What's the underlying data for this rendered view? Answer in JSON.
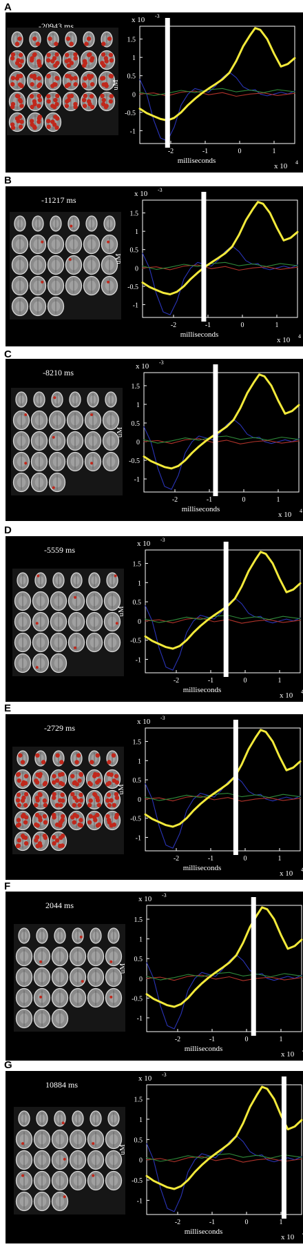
{
  "figure": {
    "axis": {
      "xlabel": "milliseconds",
      "ylabel": "uM",
      "y_exponent": "x 10",
      "y_exponent_power": "-3",
      "x_exponent": "x 10",
      "x_exponent_power": "4",
      "xticks": [
        "-2",
        "-1",
        "0",
        "1"
      ],
      "yticks": [
        "-1",
        "-0.5",
        "0",
        "0.5",
        "1",
        "1.5"
      ]
    },
    "colors": {
      "background": "#000000",
      "frame": "#ffffff",
      "main_trace": "#f2e93a",
      "blue_trace": "#2a34b8",
      "red_trace": "#b0332a",
      "green_trace": "#2f8a3a",
      "activation": "#c0281c",
      "cursor": "#ffffff"
    },
    "panels": [
      {
        "letter": "A",
        "time_label": "-20943 ms",
        "cursor_ms": -20943,
        "activation": "high"
      },
      {
        "letter": "B",
        "time_label": "-11217 ms",
        "cursor_ms": -11217,
        "activation": "low"
      },
      {
        "letter": "C",
        "time_label": "-8210 ms",
        "cursor_ms": -8210,
        "activation": "low"
      },
      {
        "letter": "D",
        "time_label": "-5559 ms",
        "cursor_ms": -5559,
        "activation": "low"
      },
      {
        "letter": "E",
        "time_label": "-2729 ms",
        "cursor_ms": -2729,
        "activation": "high"
      },
      {
        "letter": "F",
        "time_label": "2044 ms",
        "cursor_ms": 2044,
        "activation": "low"
      },
      {
        "letter": "G",
        "time_label": "10884 ms",
        "cursor_ms": 10884,
        "activation": "low"
      }
    ]
  },
  "chart_data": {
    "type": "line",
    "xlabel": "milliseconds",
    "ylabel": "uM",
    "x_unit_multiplier": "x 10^4",
    "y_unit_multiplier": "x 10^-3",
    "xlim": [
      -29000,
      16000
    ],
    "ylim": [
      -0.00135,
      0.00185
    ],
    "series": [
      {
        "color": "#f2e93a",
        "x": [
          -29000,
          -27000,
          -25000,
          -23000,
          -21000,
          -19000,
          -17000,
          -15000,
          -13000,
          -11000,
          -9000,
          -7000,
          -5000,
          -3000,
          -1000,
          1000,
          3000,
          4500,
          6000,
          8000,
          10000,
          12000,
          14000,
          16000
        ],
        "y": [
          -0.0004,
          -0.00052,
          -0.0006,
          -0.00068,
          -0.00072,
          -0.00065,
          -0.0005,
          -0.0003,
          -0.00013,
          2e-05,
          0.00015,
          0.00027,
          0.0004,
          0.00058,
          0.0009,
          0.0013,
          0.0016,
          0.0018,
          0.00175,
          0.0015,
          0.0011,
          0.00075,
          0.00082,
          0.00098
        ]
      },
      {
        "color": "#2a34b8",
        "x": [
          -29000,
          -27000,
          -25000,
          -23000,
          -21000,
          -19000,
          -17000,
          -15000,
          -13000,
          -11000,
          -9000,
          -7000,
          -5000,
          -3000,
          -1000,
          1000,
          3000,
          4500,
          6000,
          8000,
          10000,
          12000,
          14000,
          16000
        ],
        "y": [
          0.0004,
          0.0,
          -0.0007,
          -0.0012,
          -0.00128,
          -0.0009,
          -0.0003,
          0.0,
          0.00015,
          0.0001,
          5e-05,
          0.00022,
          0.00045,
          0.0006,
          0.00045,
          0.0002,
          0.0001,
          0.00012,
          0.0,
          -5e-05,
          0.0,
          5e-05,
          0.0,
          8e-05
        ]
      },
      {
        "color": "#b0332a",
        "x": [
          -29000,
          -25000,
          -21000,
          -17000,
          -13000,
          -9000,
          -5000,
          -1000,
          3000,
          7000,
          11000,
          16000
        ],
        "y": [
          0.0,
          3e-05,
          -5e-05,
          5e-05,
          8e-05,
          -2e-05,
          4e-05,
          -6e-05,
          0.0,
          3e-05,
          -4e-05,
          2e-05
        ]
      },
      {
        "color": "#2f8a3a",
        "x": [
          -29000,
          -25000,
          -21000,
          -17000,
          -13000,
          -9000,
          -5000,
          -1000,
          3000,
          7000,
          11000,
          16000
        ],
        "y": [
          5e-05,
          -4e-05,
          2e-05,
          0.0001,
          4e-05,
          0.00012,
          0.00015,
          6e-05,
          0.00011,
          4e-05,
          0.00012,
          6e-05
        ]
      }
    ]
  }
}
